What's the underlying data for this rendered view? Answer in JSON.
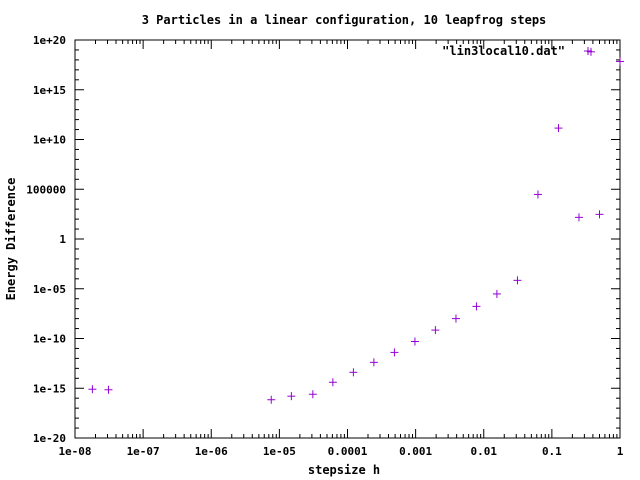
{
  "chart_data": {
    "type": "scatter",
    "title": "3 Particles in a linear configuration, 10 leapfrog steps",
    "xlabel": "stepsize h",
    "ylabel": "Energy Difference",
    "xscale": "log",
    "yscale": "log",
    "xlim": [
      1e-08,
      1
    ],
    "ylim": [
      1e-20,
      1e+20
    ],
    "xticks": [
      1e-08,
      1e-07,
      1e-06,
      1e-05,
      0.0001,
      0.001,
      0.01,
      0.1,
      1
    ],
    "xtick_labels": [
      "1e-08",
      "1e-07",
      "1e-06",
      "1e-05",
      "0.0001",
      "0.001",
      "0.01",
      "0.1",
      "1"
    ],
    "yticks": [
      1e-20,
      1e-15,
      1e-10,
      1e-05,
      1,
      100000,
      10000000000.0,
      1000000000000000.0,
      1e+20
    ],
    "ytick_labels": [
      "1e-20",
      "1e-15",
      "1e-10",
      "1e-05",
      "1",
      "100000",
      "1e+10",
      "1e+15",
      "1e+20"
    ],
    "grid": false,
    "legend_position": "top-right",
    "series": [
      {
        "name": "\"lin3local10.dat\"",
        "color": "#9400d3",
        "marker": "plus",
        "points": [
          [
            1.8e-08,
            8e-16
          ],
          [
            3.1e-08,
            7e-16
          ],
          [
            7.6e-06,
            7e-17
          ],
          [
            1.5e-05,
            1.6e-16
          ],
          [
            3.1e-05,
            2.5e-16
          ],
          [
            6.1e-05,
            4e-15
          ],
          [
            0.000122,
            4e-14
          ],
          [
            0.000244,
            4e-13
          ],
          [
            0.000488,
            4e-12
          ],
          [
            0.000977,
            5e-11
          ],
          [
            0.00195,
            7e-10
          ],
          [
            0.00391,
            1e-08
          ],
          [
            0.00781,
            1.7e-07
          ],
          [
            0.0156,
            3e-06
          ],
          [
            0.03125,
            7e-05
          ],
          [
            0.0625,
            30000.0
          ],
          [
            0.125,
            140000000000.0
          ],
          [
            0.25,
            150.0
          ],
          [
            0.375,
            6.5e+18
          ],
          [
            0.5,
            300.0
          ],
          [
            1,
            7e+17
          ]
        ]
      }
    ]
  }
}
